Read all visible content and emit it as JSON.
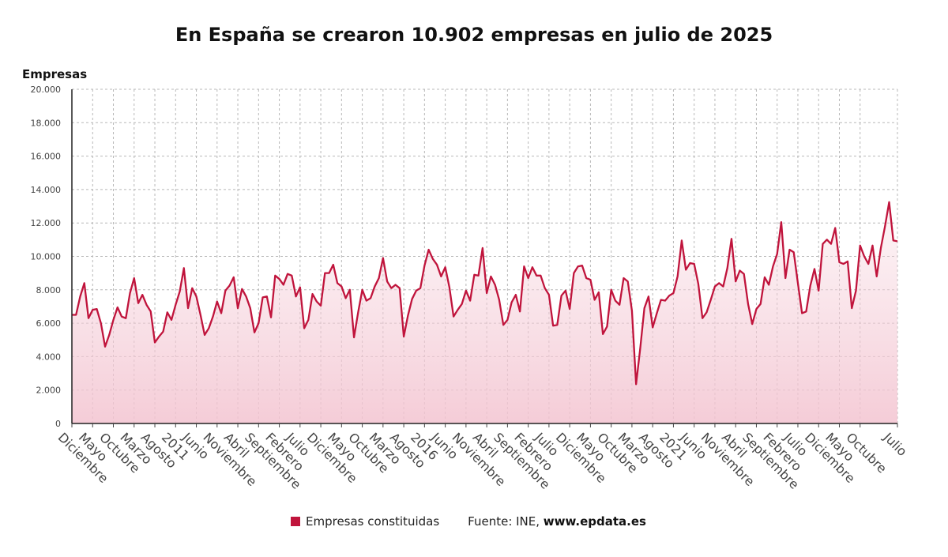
{
  "chart_data": {
    "type": "area",
    "title": "En España se crearon 10.902 empresas en julio de 2025",
    "ylabel": "Empresas",
    "xlabel": "",
    "ylim": [
      0,
      20000
    ],
    "y_ticks": [
      0,
      2000,
      4000,
      6000,
      8000,
      10000,
      12000,
      14000,
      16000,
      18000,
      20000
    ],
    "y_tick_labels": [
      "0",
      "2.000",
      "4.000",
      "6.000",
      "8.000",
      "10.000",
      "12.000",
      "14.000",
      "16.000",
      "18.000",
      "20.000"
    ],
    "grid": true,
    "legend_position": "bottom",
    "line_color": "#c0143c",
    "fill_color": "#f6d4dd",
    "x_tick_labels": [
      {
        "i": 0,
        "label": "Diciembre"
      },
      {
        "i": 5,
        "label": "Mayo"
      },
      {
        "i": 10,
        "label": "Octubre"
      },
      {
        "i": 15,
        "label": "Marzo"
      },
      {
        "i": 20,
        "label": "Agosto"
      },
      {
        "i": 25,
        "label": "2011"
      },
      {
        "i": 30,
        "label": "Junio"
      },
      {
        "i": 35,
        "label": "Noviembre"
      },
      {
        "i": 40,
        "label": "Abril"
      },
      {
        "i": 45,
        "label": "Septiembre"
      },
      {
        "i": 50,
        "label": "Febrero"
      },
      {
        "i": 55,
        "label": "Julio"
      },
      {
        "i": 60,
        "label": "Diciembre"
      },
      {
        "i": 65,
        "label": "Mayo"
      },
      {
        "i": 70,
        "label": "Octubre"
      },
      {
        "i": 75,
        "label": "Marzo"
      },
      {
        "i": 80,
        "label": "Agosto"
      },
      {
        "i": 85,
        "label": "2016"
      },
      {
        "i": 90,
        "label": "Junio"
      },
      {
        "i": 95,
        "label": "Noviembre"
      },
      {
        "i": 100,
        "label": "Abril"
      },
      {
        "i": 105,
        "label": "Septiembre"
      },
      {
        "i": 110,
        "label": "Febrero"
      },
      {
        "i": 115,
        "label": "Julio"
      },
      {
        "i": 120,
        "label": "Diciembre"
      },
      {
        "i": 125,
        "label": "Mayo"
      },
      {
        "i": 130,
        "label": "Octubre"
      },
      {
        "i": 135,
        "label": "Marzo"
      },
      {
        "i": 140,
        "label": "Agosto"
      },
      {
        "i": 145,
        "label": "2021"
      },
      {
        "i": 150,
        "label": "Junio"
      },
      {
        "i": 155,
        "label": "Noviembre"
      },
      {
        "i": 160,
        "label": "Abril"
      },
      {
        "i": 165,
        "label": "Septiembre"
      },
      {
        "i": 170,
        "label": "Febrero"
      },
      {
        "i": 175,
        "label": "Julio"
      },
      {
        "i": 180,
        "label": "Diciembre"
      },
      {
        "i": 185,
        "label": "Mayo"
      },
      {
        "i": 190,
        "label": "Octubre"
      },
      {
        "i": 199,
        "label": "Julio"
      }
    ],
    "series": [
      {
        "name": "Empresas constituidas",
        "values": [
          6500,
          6500,
          7600,
          8400,
          6300,
          6800,
          6850,
          6000,
          4600,
          5300,
          6200,
          6950,
          6400,
          6300,
          7800,
          8700,
          7200,
          7700,
          7100,
          6700,
          4850,
          5200,
          5500,
          6650,
          6200,
          7100,
          7900,
          9300,
          6900,
          8100,
          7600,
          6500,
          5300,
          5700,
          6400,
          7300,
          6600,
          7950,
          8250,
          8750,
          6900,
          8050,
          7600,
          6900,
          5450,
          6000,
          7550,
          7600,
          6350,
          8850,
          8650,
          8300,
          8950,
          8850,
          7600,
          8150,
          5700,
          6200,
          7750,
          7300,
          7050,
          9000,
          9000,
          9500,
          8400,
          8200,
          7500,
          8000,
          5150,
          6650,
          8000,
          7350,
          7500,
          8200,
          8700,
          9900,
          8500,
          8100,
          8300,
          8100,
          5200,
          6450,
          7450,
          7950,
          8100,
          9450,
          10400,
          9850,
          9500,
          8800,
          9350,
          8150,
          6400,
          6800,
          7150,
          7950,
          7350,
          8900,
          8850,
          10500,
          7800,
          8800,
          8300,
          7400,
          5900,
          6200,
          7250,
          7700,
          6700,
          9400,
          8700,
          9350,
          8850,
          8850,
          8100,
          7700,
          5850,
          5900,
          7650,
          7950,
          6850,
          9000,
          9400,
          9450,
          8700,
          8600,
          7400,
          7850,
          5350,
          5800,
          8000,
          7350,
          7100,
          8700,
          8500,
          6750,
          2350,
          4500,
          6900,
          7600,
          5750,
          6600,
          7400,
          7350,
          7650,
          7800,
          8800,
          10950,
          9200,
          9600,
          9550,
          8350,
          6300,
          6650,
          7400,
          8200,
          8400,
          8200,
          9300,
          11050,
          8500,
          9150,
          8950,
          7150,
          5950,
          6850,
          7150,
          8750,
          8300,
          9400,
          10150,
          12050,
          8700,
          10400,
          10250,
          8400,
          6600,
          6700,
          8250,
          9250,
          7950,
          10750,
          11000,
          10750,
          11700,
          9650,
          9550,
          9700,
          6900,
          7950,
          10650,
          10000,
          9550,
          10650,
          8800,
          10500,
          11800,
          13250,
          10950,
          10902
        ]
      }
    ]
  },
  "legend": {
    "label": "Empresas constituidas"
  },
  "source": {
    "prefix": "Fuente: INE, ",
    "site": "www.epdata.es"
  }
}
